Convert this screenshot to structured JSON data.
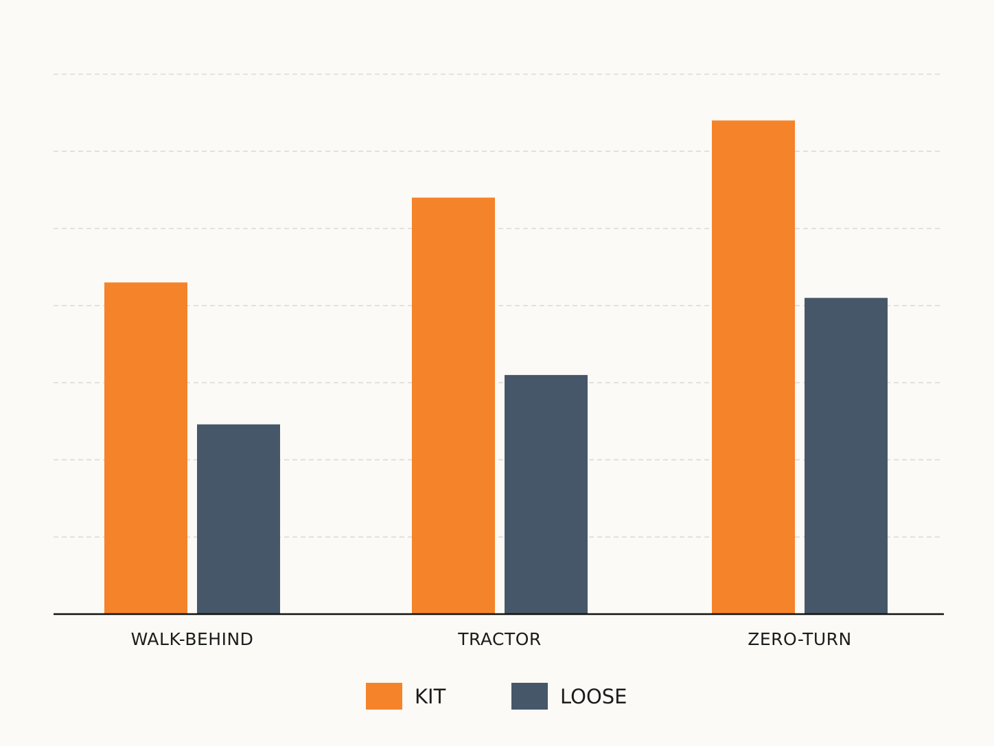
{
  "chart_data": {
    "type": "bar",
    "categories": [
      "WALK-BEHIND",
      "TRACTOR",
      "ZERO-TURN"
    ],
    "series": [
      {
        "name": "KIT",
        "values": [
          43,
          54,
          64
        ],
        "color": "#f5832a"
      },
      {
        "name": "LOOSE",
        "values": [
          24.6,
          31,
          41
        ],
        "color": "#465769"
      }
    ],
    "ylim": [
      0,
      70
    ],
    "ytick_step": 10,
    "grid": true,
    "legend": "bottom-center",
    "title": "",
    "xlabel": "",
    "ylabel": ""
  }
}
